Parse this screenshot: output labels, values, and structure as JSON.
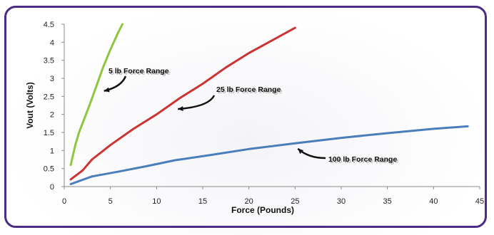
{
  "colors": {
    "frame": "#4b2e83",
    "axis": "#8c8c8c",
    "series_5lb": "#8dc63f",
    "series_25lb": "#cc3333",
    "series_100lb": "#4a7ebb"
  },
  "chart_data": {
    "type": "line",
    "title": "",
    "xlabel": "Force  (Pounds)",
    "ylabel": "Vout (Volts)",
    "xlim": [
      0,
      45
    ],
    "ylim": [
      0,
      4.5
    ],
    "x_ticks": [
      "0",
      "5",
      "10",
      "15",
      "20",
      "25",
      "30",
      "35",
      "40",
      "45"
    ],
    "y_ticks": [
      "0",
      "0.5",
      "1",
      "1.5",
      "2",
      "2.5",
      "3",
      "3.5",
      "4",
      "4.5"
    ],
    "grid": false,
    "legend": "none",
    "series": [
      {
        "name": "5 lb Force Range",
        "color": "#8dc63f",
        "x": [
          0.7,
          1.2,
          1.6,
          2.2,
          2.8,
          3.5,
          4.2,
          5.0,
          5.8,
          6.3
        ],
        "y": [
          0.6,
          1.15,
          1.5,
          1.9,
          2.3,
          2.8,
          3.3,
          3.8,
          4.25,
          4.5
        ]
      },
      {
        "name": "25 lb Force Range",
        "color": "#cc3333",
        "x": [
          0.7,
          2.0,
          3.0,
          5.0,
          7.5,
          10.0,
          12.5,
          15.0,
          17.5,
          20.0,
          22.5,
          25.0
        ],
        "y": [
          0.2,
          0.45,
          0.75,
          1.15,
          1.6,
          2.0,
          2.45,
          2.85,
          3.3,
          3.7,
          4.05,
          4.4
        ]
      },
      {
        "name": "100 lb Force Range",
        "color": "#4a7ebb",
        "x": [
          0.7,
          3.0,
          6.0,
          9.0,
          12.0,
          16.0,
          20.0,
          25.0,
          30.0,
          35.0,
          40.0,
          43.7
        ],
        "y": [
          0.07,
          0.28,
          0.42,
          0.57,
          0.73,
          0.88,
          1.04,
          1.2,
          1.35,
          1.48,
          1.6,
          1.67
        ]
      }
    ],
    "annotations": [
      {
        "text": "5 lb Force Range",
        "series": "5 lb Force Range",
        "x": 4.0,
        "y": 2.65
      },
      {
        "text": "25 lb Force Range",
        "series": "25 lb Force Range",
        "x": 12.0,
        "y": 2.15
      },
      {
        "text": "100 lb Force Range",
        "series": "100 lb Force Range",
        "x": 25.0,
        "y": 1.05
      }
    ]
  }
}
